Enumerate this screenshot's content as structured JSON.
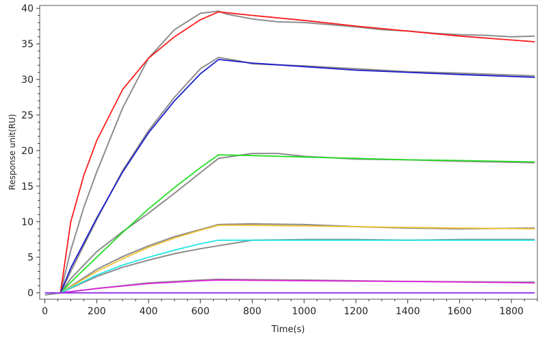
{
  "chart_data": {
    "type": "line",
    "title": "",
    "xlabel": "Time(s)",
    "ylabel": "Response unit(RU)",
    "xlim": [
      -20,
      1900
    ],
    "ylim": [
      -0.9,
      40.4
    ],
    "xticks": [
      "0",
      "200",
      "400",
      "600",
      "800",
      "1000",
      "1200",
      "1400",
      "1600",
      "1800"
    ],
    "yticks": [
      "0",
      "5",
      "10",
      "15",
      "20",
      "25",
      "30",
      "35",
      "40"
    ],
    "grid": false,
    "legend": "none",
    "raw_color": "#8c8c8c",
    "series": [
      {
        "kind": "fit",
        "color": "#ff1a1a",
        "x": [
          60,
          100,
          150,
          200,
          300,
          400,
          500,
          600,
          670,
          800,
          1000,
          1200,
          1400,
          1600,
          1890
        ],
        "y": [
          0,
          10,
          16.5,
          21.4,
          28.6,
          33,
          36,
          38.4,
          39.5,
          39,
          38.3,
          37.5,
          36.8,
          36.1,
          35.3
        ]
      },
      {
        "kind": "raw",
        "x": [
          0,
          60,
          100,
          150,
          200,
          300,
          400,
          500,
          600,
          670,
          700,
          800,
          900,
          1000,
          1100,
          1200,
          1300,
          1400,
          1500,
          1600,
          1700,
          1800,
          1890
        ],
        "y": [
          -0.3,
          0,
          6,
          12,
          17,
          26,
          33,
          37,
          39.3,
          39.6,
          39.2,
          38.5,
          38.1,
          38,
          37.7,
          37.4,
          37,
          36.8,
          36.5,
          36.3,
          36.2,
          36,
          36.1
        ]
      },
      {
        "kind": "fit",
        "color": "#1a1acc",
        "x": [
          60,
          100,
          200,
          300,
          400,
          500,
          600,
          670,
          800,
          1000,
          1200,
          1400,
          1600,
          1890
        ],
        "y": [
          0,
          3.5,
          10.5,
          17,
          22.5,
          27,
          30.8,
          32.8,
          32.3,
          31.8,
          31.3,
          31,
          30.7,
          30.3
        ]
      },
      {
        "kind": "raw",
        "x": [
          60,
          100,
          200,
          300,
          400,
          500,
          600,
          670,
          750,
          800,
          1000,
          1200,
          1400,
          1600,
          1890
        ],
        "y": [
          0,
          3,
          10.3,
          17.2,
          22.8,
          27.5,
          31.5,
          33.1,
          32.6,
          32.2,
          31.9,
          31.5,
          31.1,
          30.9,
          30.5
        ]
      },
      {
        "kind": "fit",
        "color": "#22dd22",
        "x": [
          60,
          100,
          200,
          300,
          400,
          500,
          600,
          670,
          800,
          1000,
          1200,
          1400,
          1600,
          1890
        ],
        "y": [
          0,
          1.5,
          5,
          8.5,
          11.8,
          14.8,
          17.6,
          19.4,
          19.3,
          19.1,
          18.9,
          18.7,
          18.6,
          18.4
        ]
      },
      {
        "kind": "raw",
        "x": [
          60,
          100,
          200,
          300,
          400,
          500,
          600,
          670,
          800,
          900,
          1000,
          1200,
          1400,
          1600,
          1890
        ],
        "y": [
          0,
          2,
          5.8,
          8.6,
          11.2,
          14,
          16.9,
          18.9,
          19.6,
          19.6,
          19.2,
          18.8,
          18.7,
          18.5,
          18.3
        ]
      },
      {
        "kind": "fit",
        "color": "#f2c12e",
        "x": [
          60,
          200,
          300,
          400,
          500,
          600,
          670,
          800,
          1000,
          1200,
          1400,
          1600,
          1890
        ],
        "y": [
          0,
          3,
          4.8,
          6.4,
          7.7,
          8.8,
          9.5,
          9.5,
          9.4,
          9.3,
          9.2,
          9.1,
          9.0
        ]
      },
      {
        "kind": "raw",
        "x": [
          60,
          200,
          300,
          400,
          500,
          600,
          670,
          800,
          1000,
          1200,
          1400,
          1600,
          1890
        ],
        "y": [
          0,
          3.3,
          5.1,
          6.6,
          7.9,
          8.9,
          9.6,
          9.7,
          9.6,
          9.3,
          9.1,
          9.0,
          9.1
        ]
      },
      {
        "kind": "fit",
        "color": "#22e5e5",
        "x": [
          60,
          200,
          300,
          400,
          500,
          600,
          670,
          1890
        ],
        "y": [
          0,
          2.5,
          3.9,
          5.0,
          6.0,
          6.9,
          7.4,
          7.4
        ]
      },
      {
        "kind": "raw",
        "x": [
          60,
          200,
          300,
          400,
          500,
          600,
          700,
          800,
          1000,
          1200,
          1400,
          1600,
          1890
        ],
        "y": [
          0,
          2.3,
          3.6,
          4.6,
          5.5,
          6.2,
          6.8,
          7.4,
          7.5,
          7.5,
          7.4,
          7.5,
          7.5
        ]
      },
      {
        "kind": "fit",
        "color": "#dd22dd",
        "x": [
          60,
          200,
          400,
          600,
          670,
          1000,
          1400,
          1890
        ],
        "y": [
          0,
          0.6,
          1.3,
          1.7,
          1.8,
          1.7,
          1.6,
          1.4
        ]
      },
      {
        "kind": "raw",
        "x": [
          60,
          200,
          400,
          600,
          670,
          1000,
          1400,
          1890
        ],
        "y": [
          0,
          0.6,
          1.4,
          1.8,
          1.9,
          1.8,
          1.6,
          1.5
        ]
      },
      {
        "kind": "fit",
        "color": "#8a2be2",
        "x": [
          0,
          1890
        ],
        "y": [
          0,
          0
        ]
      }
    ]
  }
}
